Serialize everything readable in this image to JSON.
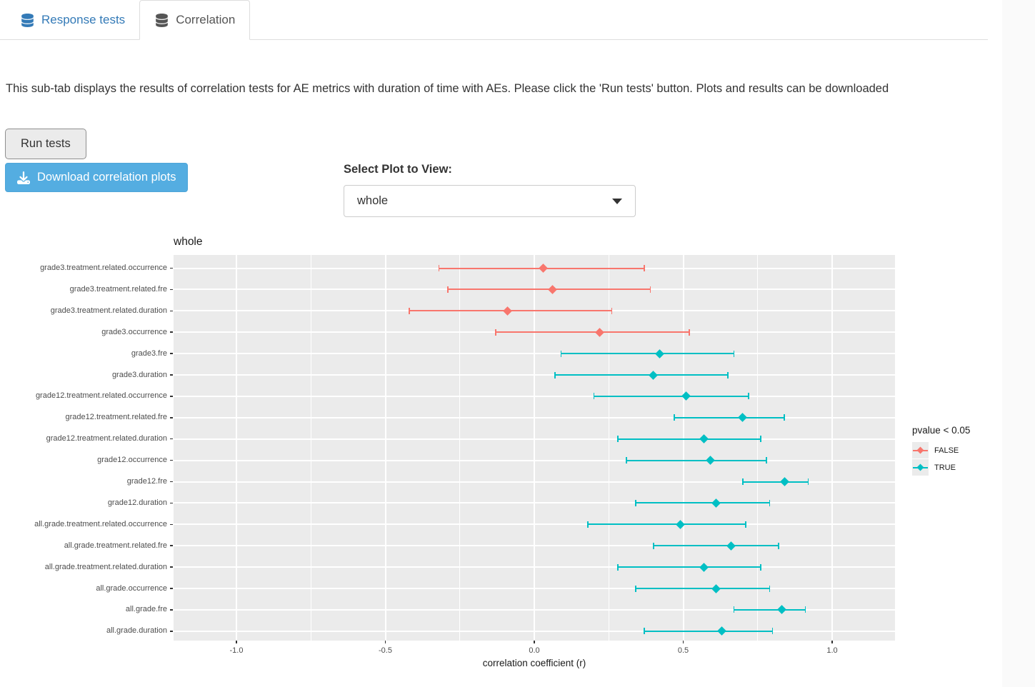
{
  "tabs": [
    {
      "label": "Response tests",
      "active": false
    },
    {
      "label": "Correlation",
      "active": true
    }
  ],
  "description": "This sub-tab displays the results of correlation tests for AE metrics with duration of time with AEs. Please click the 'Run tests' button. Plots and results can be downloaded",
  "run_button_label": "Run tests",
  "download_button_label": "Download correlation plots",
  "select_plot": {
    "label": "Select Plot to View:",
    "value": "whole"
  },
  "colors": {
    "tab_link_blue": "#337AB7",
    "tab_active_text": "#555555",
    "download_button_blue": "#54ADE1",
    "panel_background": "#EBEBEB",
    "gridline": "#FFFFFF",
    "axis_text": "#4D4D4D",
    "false_color": "#F8766D",
    "true_color": "#00BFC4"
  },
  "chart_data": {
    "type": "scatter",
    "subtype": "pointrange-forest",
    "title": "whole",
    "xlabel": "correlation coefficient (r)",
    "ylabel": "",
    "xlim": [
      -1.21,
      1.21
    ],
    "x_ticks": [
      -1.0,
      -0.5,
      0.0,
      0.5,
      1.0
    ],
    "x_tick_labels": [
      "-1.0",
      "-0.5",
      "0.0",
      "0.5",
      "1.0"
    ],
    "x_minor_ticks": [
      -0.75,
      -0.25,
      0.25,
      0.75
    ],
    "grid": true,
    "legend": {
      "title": "pvalue < 0.05",
      "position": "right",
      "entries": [
        {
          "label": "FALSE",
          "color": "#F8766D"
        },
        {
          "label": "TRUE",
          "color": "#00BFC4"
        }
      ]
    },
    "points": [
      {
        "label": "grade3.treatment.related.occurrence",
        "r": 0.03,
        "low": -0.32,
        "high": 0.37,
        "significant": false
      },
      {
        "label": "grade3.treatment.related.fre",
        "r": 0.06,
        "low": -0.29,
        "high": 0.39,
        "significant": false
      },
      {
        "label": "grade3.treatment.related.duration",
        "r": -0.09,
        "low": -0.42,
        "high": 0.26,
        "significant": false
      },
      {
        "label": "grade3.occurrence",
        "r": 0.22,
        "low": -0.13,
        "high": 0.52,
        "significant": false
      },
      {
        "label": "grade3.fre",
        "r": 0.42,
        "low": 0.09,
        "high": 0.67,
        "significant": true
      },
      {
        "label": "grade3.duration",
        "r": 0.4,
        "low": 0.07,
        "high": 0.65,
        "significant": true
      },
      {
        "label": "grade12.treatment.related.occurrence",
        "r": 0.51,
        "low": 0.2,
        "high": 0.72,
        "significant": true
      },
      {
        "label": "grade12.treatment.related.fre",
        "r": 0.7,
        "low": 0.47,
        "high": 0.84,
        "significant": true
      },
      {
        "label": "grade12.treatment.related.duration",
        "r": 0.57,
        "low": 0.28,
        "high": 0.76,
        "significant": true
      },
      {
        "label": "grade12.occurrence",
        "r": 0.59,
        "low": 0.31,
        "high": 0.78,
        "significant": true
      },
      {
        "label": "grade12.fre",
        "r": 0.84,
        "low": 0.7,
        "high": 0.92,
        "significant": true
      },
      {
        "label": "grade12.duration",
        "r": 0.61,
        "low": 0.34,
        "high": 0.79,
        "significant": true
      },
      {
        "label": "all.grade.treatment.related.occurrence",
        "r": 0.49,
        "low": 0.18,
        "high": 0.71,
        "significant": true
      },
      {
        "label": "all.grade.treatment.related.fre",
        "r": 0.66,
        "low": 0.4,
        "high": 0.82,
        "significant": true
      },
      {
        "label": "all.grade.treatment.related.duration",
        "r": 0.57,
        "low": 0.28,
        "high": 0.76,
        "significant": true
      },
      {
        "label": "all.grade.occurrence",
        "r": 0.61,
        "low": 0.34,
        "high": 0.79,
        "significant": true
      },
      {
        "label": "all.grade.fre",
        "r": 0.83,
        "low": 0.67,
        "high": 0.91,
        "significant": true
      },
      {
        "label": "all.grade.duration",
        "r": 0.63,
        "low": 0.37,
        "high": 0.8,
        "significant": true
      }
    ]
  }
}
